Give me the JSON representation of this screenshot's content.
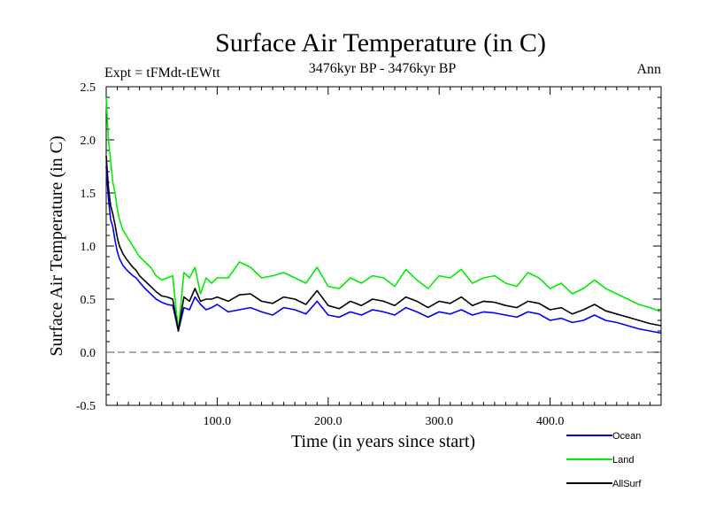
{
  "chart_data": {
    "type": "line",
    "title": "Surface Air Temperature (in C)",
    "subtitle": "3476kyr BP - 3476kyr BP",
    "left_annotation": "Expt = tFMdt-tEWtt",
    "right_annotation": "Ann",
    "xlabel": "Time (in years since start)",
    "ylabel": "Surface Air Temperature (in C)",
    "xlim": [
      0,
      500
    ],
    "ylim": [
      -0.5,
      2.5
    ],
    "x_ticks": [
      100,
      200,
      300,
      400
    ],
    "x_tick_labels": [
      "100.0",
      "200.0",
      "300.0",
      "400.0"
    ],
    "y_ticks": [
      -0.5,
      0.0,
      0.5,
      1.0,
      1.5,
      2.0,
      2.5
    ],
    "y_tick_labels": [
      "-0.5",
      "0.0",
      "0.5",
      "1.0",
      "1.5",
      "2.0",
      "2.5"
    ],
    "reference_line": 0.0,
    "legend_position": "bottom-right",
    "series": [
      {
        "name": "Ocean",
        "color": "#0000ff",
        "x": [
          0,
          2,
          4,
          6,
          8,
          10,
          12,
          15,
          18,
          21,
          24,
          27,
          30,
          35,
          40,
          45,
          50,
          55,
          60,
          65,
          70,
          75,
          80,
          85,
          90,
          95,
          100,
          110,
          120,
          130,
          140,
          150,
          160,
          170,
          180,
          190,
          200,
          210,
          220,
          230,
          240,
          250,
          260,
          270,
          280,
          290,
          300,
          310,
          320,
          330,
          340,
          350,
          360,
          370,
          380,
          390,
          400,
          410,
          420,
          430,
          440,
          450,
          460,
          470,
          480,
          490,
          500
        ],
        "values": [
          1.75,
          1.45,
          1.25,
          1.18,
          1.05,
          0.95,
          0.88,
          0.82,
          0.78,
          0.75,
          0.72,
          0.7,
          0.66,
          0.6,
          0.55,
          0.5,
          0.47,
          0.45,
          0.44,
          0.2,
          0.42,
          0.4,
          0.52,
          0.45,
          0.4,
          0.42,
          0.45,
          0.38,
          0.4,
          0.42,
          0.38,
          0.35,
          0.42,
          0.4,
          0.36,
          0.48,
          0.35,
          0.33,
          0.38,
          0.35,
          0.4,
          0.38,
          0.35,
          0.42,
          0.38,
          0.33,
          0.38,
          0.36,
          0.4,
          0.35,
          0.38,
          0.37,
          0.35,
          0.33,
          0.38,
          0.36,
          0.3,
          0.32,
          0.28,
          0.3,
          0.35,
          0.3,
          0.28,
          0.25,
          0.22,
          0.2,
          0.18
        ]
      },
      {
        "name": "Land",
        "color": "#00ee00",
        "x": [
          0,
          2,
          4,
          6,
          8,
          10,
          12,
          15,
          18,
          21,
          24,
          27,
          30,
          35,
          40,
          45,
          50,
          55,
          60,
          65,
          70,
          75,
          80,
          85,
          90,
          95,
          100,
          110,
          120,
          130,
          140,
          150,
          160,
          170,
          180,
          190,
          200,
          210,
          220,
          230,
          240,
          250,
          260,
          270,
          280,
          290,
          300,
          310,
          320,
          330,
          340,
          350,
          360,
          370,
          380,
          390,
          400,
          410,
          420,
          430,
          440,
          450,
          460,
          470,
          480,
          490,
          500
        ],
        "values": [
          2.4,
          2.0,
          1.8,
          1.6,
          1.5,
          1.35,
          1.25,
          1.15,
          1.1,
          1.05,
          1.0,
          0.95,
          0.9,
          0.85,
          0.8,
          0.72,
          0.68,
          0.7,
          0.72,
          0.2,
          0.75,
          0.7,
          0.8,
          0.55,
          0.7,
          0.65,
          0.7,
          0.7,
          0.85,
          0.8,
          0.7,
          0.72,
          0.75,
          0.7,
          0.65,
          0.8,
          0.62,
          0.6,
          0.7,
          0.65,
          0.72,
          0.7,
          0.62,
          0.78,
          0.68,
          0.6,
          0.72,
          0.7,
          0.78,
          0.65,
          0.7,
          0.72,
          0.65,
          0.62,
          0.75,
          0.7,
          0.6,
          0.65,
          0.55,
          0.6,
          0.68,
          0.6,
          0.55,
          0.5,
          0.45,
          0.42,
          0.38
        ]
      },
      {
        "name": "AllSurf",
        "color": "#000000",
        "x": [
          0,
          2,
          4,
          6,
          8,
          10,
          12,
          15,
          18,
          21,
          24,
          27,
          30,
          35,
          40,
          45,
          50,
          55,
          60,
          65,
          70,
          75,
          80,
          85,
          90,
          95,
          100,
          110,
          120,
          130,
          140,
          150,
          160,
          170,
          180,
          190,
          200,
          210,
          220,
          230,
          240,
          250,
          260,
          270,
          280,
          290,
          300,
          310,
          320,
          330,
          340,
          350,
          360,
          370,
          380,
          390,
          400,
          410,
          420,
          430,
          440,
          450,
          460,
          470,
          480,
          490,
          500
        ],
        "values": [
          1.85,
          1.55,
          1.38,
          1.3,
          1.2,
          1.08,
          1.0,
          0.93,
          0.88,
          0.84,
          0.8,
          0.77,
          0.72,
          0.67,
          0.62,
          0.57,
          0.53,
          0.52,
          0.5,
          0.2,
          0.52,
          0.48,
          0.6,
          0.48,
          0.5,
          0.5,
          0.52,
          0.48,
          0.54,
          0.55,
          0.48,
          0.46,
          0.52,
          0.5,
          0.45,
          0.58,
          0.44,
          0.41,
          0.48,
          0.44,
          0.5,
          0.48,
          0.44,
          0.52,
          0.48,
          0.42,
          0.48,
          0.46,
          0.52,
          0.44,
          0.48,
          0.47,
          0.44,
          0.42,
          0.48,
          0.46,
          0.4,
          0.42,
          0.36,
          0.4,
          0.45,
          0.39,
          0.36,
          0.33,
          0.3,
          0.27,
          0.25
        ]
      }
    ]
  }
}
